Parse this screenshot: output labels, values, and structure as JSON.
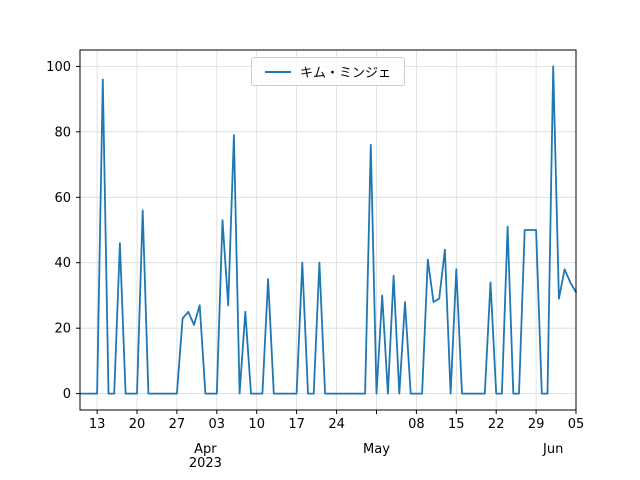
{
  "chart_data": {
    "type": "line",
    "title": "",
    "legend": {
      "position": "upper center",
      "entries": [
        {
          "label": "キム・ミンジェ",
          "color": "#1f77b4"
        }
      ]
    },
    "line_color": "#1f77b4",
    "grid": true,
    "ylim": [
      -5,
      105
    ],
    "yticks": [
      0,
      20,
      40,
      60,
      80,
      100
    ],
    "x_start_date": "2023-03-10",
    "x_end_date": "2023-06-05",
    "xticks": [
      {
        "index": 3,
        "label": "13"
      },
      {
        "index": 10,
        "label": "20"
      },
      {
        "index": 17,
        "label": "27"
      },
      {
        "index": 24,
        "label": "03"
      },
      {
        "index": 31,
        "label": "10"
      },
      {
        "index": 38,
        "label": "17"
      },
      {
        "index": 45,
        "label": "24"
      },
      {
        "index": 52,
        "label": ""
      },
      {
        "index": 59,
        "label": "08"
      },
      {
        "index": 66,
        "label": "15"
      },
      {
        "index": 73,
        "label": "22"
      },
      {
        "index": 80,
        "label": "29"
      },
      {
        "index": 87,
        "label": "05"
      }
    ],
    "x_secondary_labels": [
      {
        "index": 22,
        "lines": [
          "Apr",
          "2023"
        ]
      },
      {
        "index": 52,
        "lines": [
          "May"
        ]
      },
      {
        "index": 83,
        "lines": [
          "Jun"
        ]
      }
    ],
    "dates": [
      "2023-03-10",
      "2023-03-11",
      "2023-03-12",
      "2023-03-13",
      "2023-03-14",
      "2023-03-15",
      "2023-03-16",
      "2023-03-17",
      "2023-03-18",
      "2023-03-19",
      "2023-03-20",
      "2023-03-21",
      "2023-03-22",
      "2023-03-23",
      "2023-03-24",
      "2023-03-25",
      "2023-03-26",
      "2023-03-27",
      "2023-03-28",
      "2023-03-29",
      "2023-03-30",
      "2023-03-31",
      "2023-04-01",
      "2023-04-02",
      "2023-04-03",
      "2023-04-04",
      "2023-04-05",
      "2023-04-06",
      "2023-04-07",
      "2023-04-08",
      "2023-04-09",
      "2023-04-10",
      "2023-04-11",
      "2023-04-12",
      "2023-04-13",
      "2023-04-14",
      "2023-04-15",
      "2023-04-16",
      "2023-04-17",
      "2023-04-18",
      "2023-04-19",
      "2023-04-20",
      "2023-04-21",
      "2023-04-22",
      "2023-04-23",
      "2023-04-24",
      "2023-04-25",
      "2023-04-26",
      "2023-04-27",
      "2023-04-28",
      "2023-04-29",
      "2023-04-30",
      "2023-05-01",
      "2023-05-02",
      "2023-05-03",
      "2023-05-04",
      "2023-05-05",
      "2023-05-06",
      "2023-05-07",
      "2023-05-08",
      "2023-05-09",
      "2023-05-10",
      "2023-05-11",
      "2023-05-12",
      "2023-05-13",
      "2023-05-14",
      "2023-05-15",
      "2023-05-16",
      "2023-05-17",
      "2023-05-18",
      "2023-05-19",
      "2023-05-20",
      "2023-05-21",
      "2023-05-22",
      "2023-05-23",
      "2023-05-24",
      "2023-05-25",
      "2023-05-26",
      "2023-05-27",
      "2023-05-28",
      "2023-05-29",
      "2023-05-30",
      "2023-05-31",
      "2023-06-01",
      "2023-06-02",
      "2023-06-03",
      "2023-06-04",
      "2023-06-05"
    ],
    "values": [
      0,
      0,
      0,
      0,
      96,
      0,
      0,
      46,
      0,
      0,
      0,
      56,
      0,
      0,
      0,
      0,
      0,
      0,
      23,
      25,
      21,
      27,
      0,
      0,
      0,
      53,
      27,
      79,
      0,
      25,
      0,
      0,
      0,
      35,
      0,
      0,
      0,
      0,
      0,
      40,
      0,
      0,
      40,
      0,
      0,
      0,
      0,
      0,
      0,
      0,
      0,
      76,
      0,
      30,
      0,
      36,
      0,
      28,
      0,
      0,
      0,
      41,
      28,
      29,
      44,
      0,
      38,
      0,
      0,
      0,
      0,
      0,
      34,
      0,
      0,
      51,
      0,
      0,
      50,
      50,
      50,
      0,
      0,
      100,
      29,
      38,
      34,
      31
    ]
  }
}
